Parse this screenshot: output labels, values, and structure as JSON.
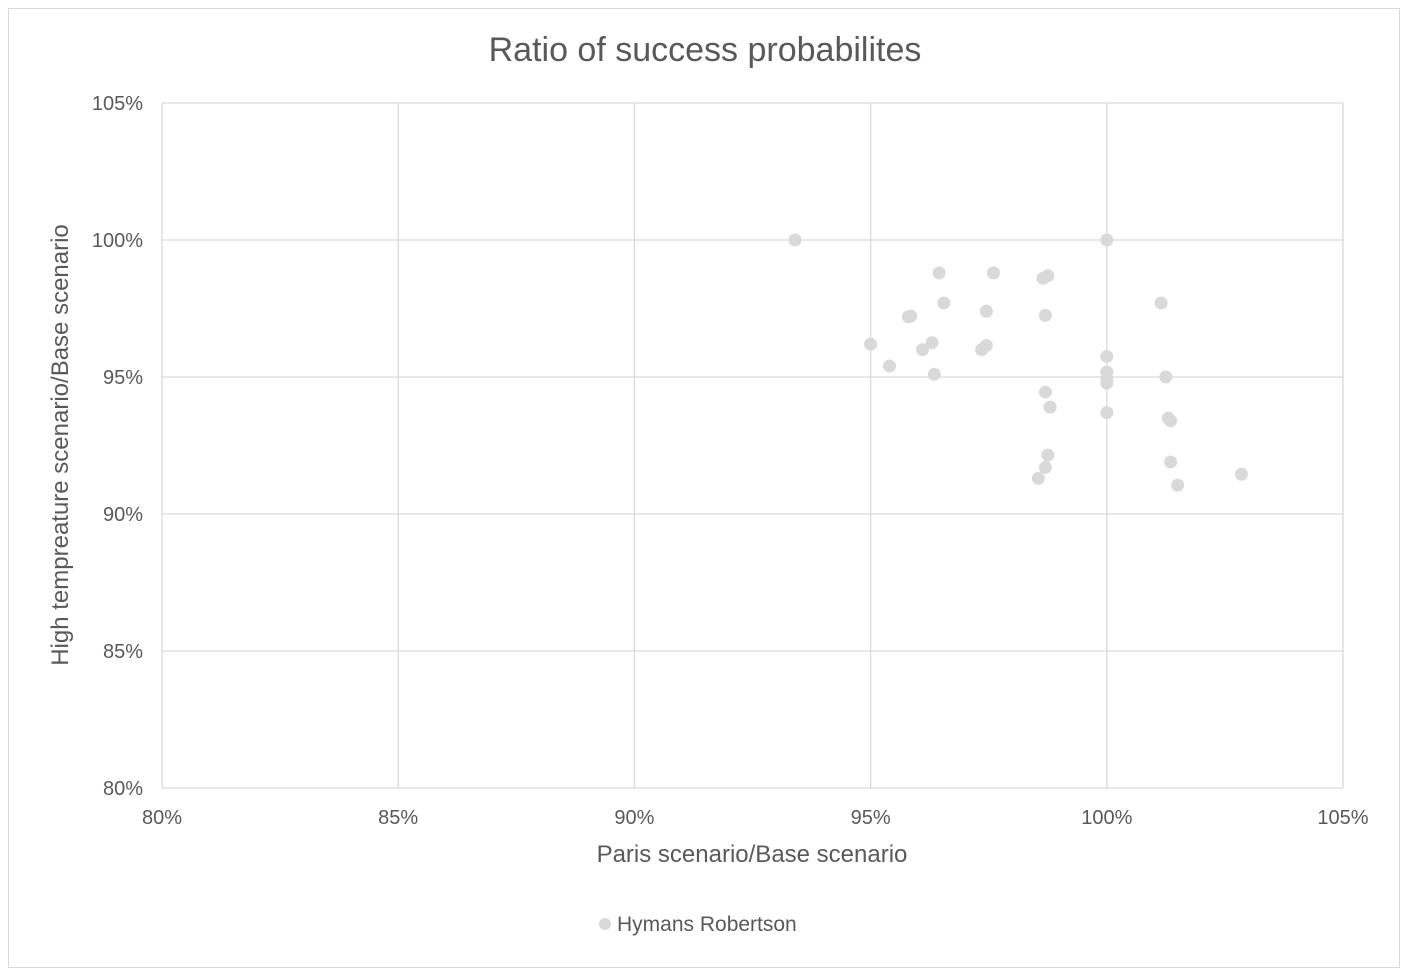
{
  "chart_data": {
    "type": "scatter",
    "title": "Ratio of success probabilites",
    "xlabel": "Paris scenario/Base scenario",
    "ylabel": "High tempreature scenario/Base scenario",
    "xlim": [
      0.8,
      1.05
    ],
    "ylim": [
      0.8,
      1.05
    ],
    "x_ticks": [
      "80%",
      "85%",
      "90%",
      "95%",
      "100%",
      "105%"
    ],
    "y_ticks": [
      "80%",
      "85%",
      "90%",
      "95%",
      "100%",
      "105%"
    ],
    "grid": true,
    "legend_position": "bottom",
    "series": [
      {
        "name": "Hymans Robertson",
        "color": "#d9d9d9",
        "points": [
          [
            0.934,
            1.0
          ],
          [
            0.95,
            0.962
          ],
          [
            0.954,
            0.954
          ],
          [
            0.958,
            0.972
          ],
          [
            0.9585,
            0.9722
          ],
          [
            0.961,
            0.96
          ],
          [
            0.963,
            0.9625
          ],
          [
            0.9635,
            0.951
          ],
          [
            0.9645,
            0.988
          ],
          [
            0.9655,
            0.977
          ],
          [
            0.9735,
            0.96
          ],
          [
            0.9745,
            0.9615
          ],
          [
            0.9745,
            0.974
          ],
          [
            0.976,
            0.988
          ],
          [
            0.9865,
            0.986
          ],
          [
            0.9875,
            0.987
          ],
          [
            0.987,
            0.9725
          ],
          [
            0.987,
            0.9445
          ],
          [
            0.988,
            0.939
          ],
          [
            0.9875,
            0.9215
          ],
          [
            0.987,
            0.917
          ],
          [
            0.9855,
            0.913
          ],
          [
            1.0,
            1.0
          ],
          [
            1.0,
            0.9575
          ],
          [
            1.0,
            0.9518
          ],
          [
            1.0,
            0.9495
          ],
          [
            1.0,
            0.9478
          ],
          [
            1.0,
            0.937
          ],
          [
            1.0115,
            0.977
          ],
          [
            1.0125,
            0.95
          ],
          [
            1.013,
            0.935
          ],
          [
            1.0135,
            0.934
          ],
          [
            1.0135,
            0.919
          ],
          [
            1.015,
            0.9105
          ],
          [
            1.0285,
            0.9145
          ]
        ]
      }
    ]
  }
}
